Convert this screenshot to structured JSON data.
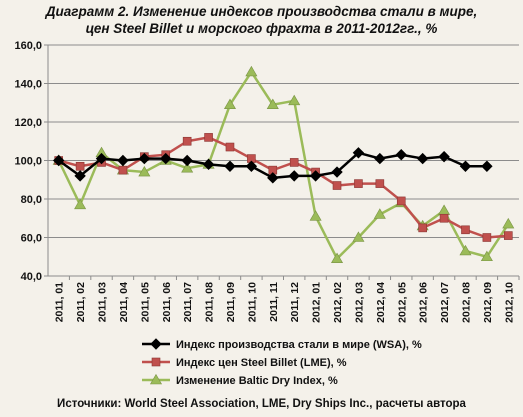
{
  "chart_data": {
    "type": "line",
    "title_line1": "Диаграмм 2. Изменение индексов производства стали в мире,",
    "title_line2": "цен Steel Billet и морского фрахта в 2011-2012гг., %",
    "categories": [
      "2011, 01",
      "2011, 02",
      "2011, 03",
      "2011, 04",
      "2011, 05",
      "2011, 06",
      "2011, 07",
      "2011, 08",
      "2011, 09",
      "2011, 10",
      "2011, 11",
      "2011, 12",
      "2012, 01",
      "2012, 02",
      "2012, 03",
      "2012, 04",
      "2012, 05",
      "2012, 06",
      "2012, 07",
      "2012, 08",
      "2012, 09",
      "2012, 10"
    ],
    "ylim": [
      40,
      160
    ],
    "yticks": [
      "40,0",
      "60,0",
      "80,0",
      "100,0",
      "120,0",
      "140,0",
      "160,0"
    ],
    "grid": "horizontal",
    "legend_position": "bottom",
    "series": [
      {
        "name": "Индекс производства стали в мире (WSA), %",
        "color": "#000000",
        "marker": "diamond",
        "values": [
          100,
          92,
          101,
          100,
          101,
          101,
          100,
          98,
          97,
          97,
          91,
          92,
          92,
          94,
          104,
          101,
          103,
          101,
          102,
          97,
          97,
          null
        ]
      },
      {
        "name": "Индекс цен Steel Billet (LME), %",
        "color": "#c0504d",
        "marker": "square",
        "values": [
          100,
          97,
          99,
          95,
          102,
          103,
          110,
          112,
          107,
          101,
          95,
          99,
          94,
          87,
          88,
          88,
          79,
          65,
          70,
          64,
          60,
          61
        ]
      },
      {
        "name": "Изменение Baltic Dry Index, %",
        "color": "#9bbb59",
        "marker": "triangle",
        "values": [
          100,
          77,
          104,
          95,
          94,
          100,
          96,
          98,
          129,
          146,
          129,
          131,
          71,
          49,
          60,
          72,
          78,
          66,
          74,
          53,
          50,
          67
        ]
      }
    ]
  },
  "source_note": "Источники: World Steel Association, LME, Dry Ships Inc., расчеты автора"
}
